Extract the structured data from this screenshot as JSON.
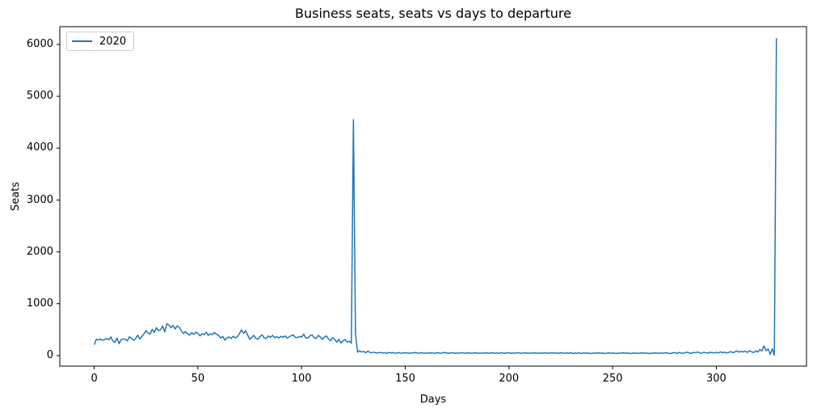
{
  "chart_data": {
    "type": "line",
    "title": "Business seats, seats vs days to departure",
    "xlabel": "Days",
    "ylabel": "Seats",
    "grid": false,
    "legend_position": "upper left",
    "xlim": [
      -16.6,
      343.5
    ],
    "ylim": [
      -203,
      6342
    ],
    "xticks": [
      0,
      50,
      100,
      150,
      200,
      250,
      300
    ],
    "yticks": [
      0,
      1000,
      2000,
      3000,
      4000,
      5000,
      6000
    ],
    "series": [
      {
        "name": "2020",
        "color": "#1f77b4",
        "x_start": 0,
        "x_step": 1,
        "values": [
          210,
          315,
          300,
          320,
          295,
          310,
          330,
          305,
          360,
          280,
          255,
          340,
          230,
          310,
          320,
          315,
          285,
          365,
          330,
          295,
          330,
          395,
          320,
          370,
          420,
          480,
          430,
          420,
          510,
          445,
          540,
          480,
          500,
          570,
          455,
          615,
          590,
          540,
          580,
          515,
          570,
          545,
          480,
          425,
          460,
          420,
          395,
          440,
          410,
          450,
          430,
          380,
          420,
          405,
          450,
          390,
          420,
          405,
          445,
          410,
          390,
          340,
          370,
          300,
          340,
          360,
          330,
          375,
          340,
          365,
          420,
          495,
          430,
          480,
          395,
          315,
          350,
          390,
          330,
          315,
          370,
          400,
          340,
          330,
          380,
          350,
          390,
          345,
          365,
          340,
          370,
          355,
          380,
          340,
          360,
          385,
          400,
          350,
          348,
          370,
          355,
          414,
          340,
          338,
          380,
          400,
          350,
          327,
          390,
          360,
          312,
          360,
          379,
          320,
          286,
          348,
          310,
          260,
          312,
          244,
          286,
          310,
          260,
          280,
          240,
          4550,
          420,
          65,
          95,
          70,
          80,
          55,
          90,
          60,
          55,
          65,
          50,
          55,
          60,
          50,
          55,
          45,
          60,
          50,
          58,
          45,
          52,
          56,
          44,
          50,
          56,
          50,
          44,
          55,
          50,
          60,
          45,
          50,
          56,
          44,
          50,
          45,
          56,
          50,
          44,
          52,
          56,
          45,
          50,
          62,
          50,
          44,
          52,
          56,
          44,
          50,
          45,
          56,
          52,
          44,
          56,
          50,
          44,
          52,
          56,
          44,
          50,
          44,
          52,
          56,
          44,
          50,
          56,
          44,
          52,
          45,
          56,
          50,
          44,
          52,
          56,
          44,
          50,
          45,
          56,
          52,
          44,
          50,
          56,
          44,
          50,
          44,
          56,
          50,
          44,
          52,
          44,
          56,
          50,
          44,
          50,
          56,
          44,
          50,
          44,
          56,
          50,
          44,
          52,
          44,
          56,
          40,
          50,
          44,
          52,
          40,
          56,
          44,
          50,
          44,
          40,
          50,
          44,
          56,
          44,
          50,
          40,
          44,
          52,
          44,
          50,
          44,
          40,
          50,
          44,
          56,
          44,
          50,
          44,
          40,
          50,
          44,
          50,
          40,
          56,
          44,
          50,
          44,
          40,
          50,
          44,
          56,
          40,
          50,
          44,
          50,
          56,
          44,
          40,
          52,
          56,
          44,
          60,
          50,
          44,
          56,
          66,
          50,
          44,
          60,
          55,
          70,
          50,
          45,
          62,
          55,
          45,
          66,
          56,
          50,
          62,
          50,
          72,
          56,
          66,
          50,
          62,
          76,
          56,
          72,
          92,
          66,
          82,
          70,
          88,
          62,
          95,
          75,
          60,
          90,
          70,
          115,
          90,
          185,
          95,
          130,
          25,
          130,
          10,
          6120
        ]
      }
    ],
    "colors": {
      "axis": "#000000",
      "background": "#ffffff",
      "legend_border": "#cccccc"
    }
  }
}
